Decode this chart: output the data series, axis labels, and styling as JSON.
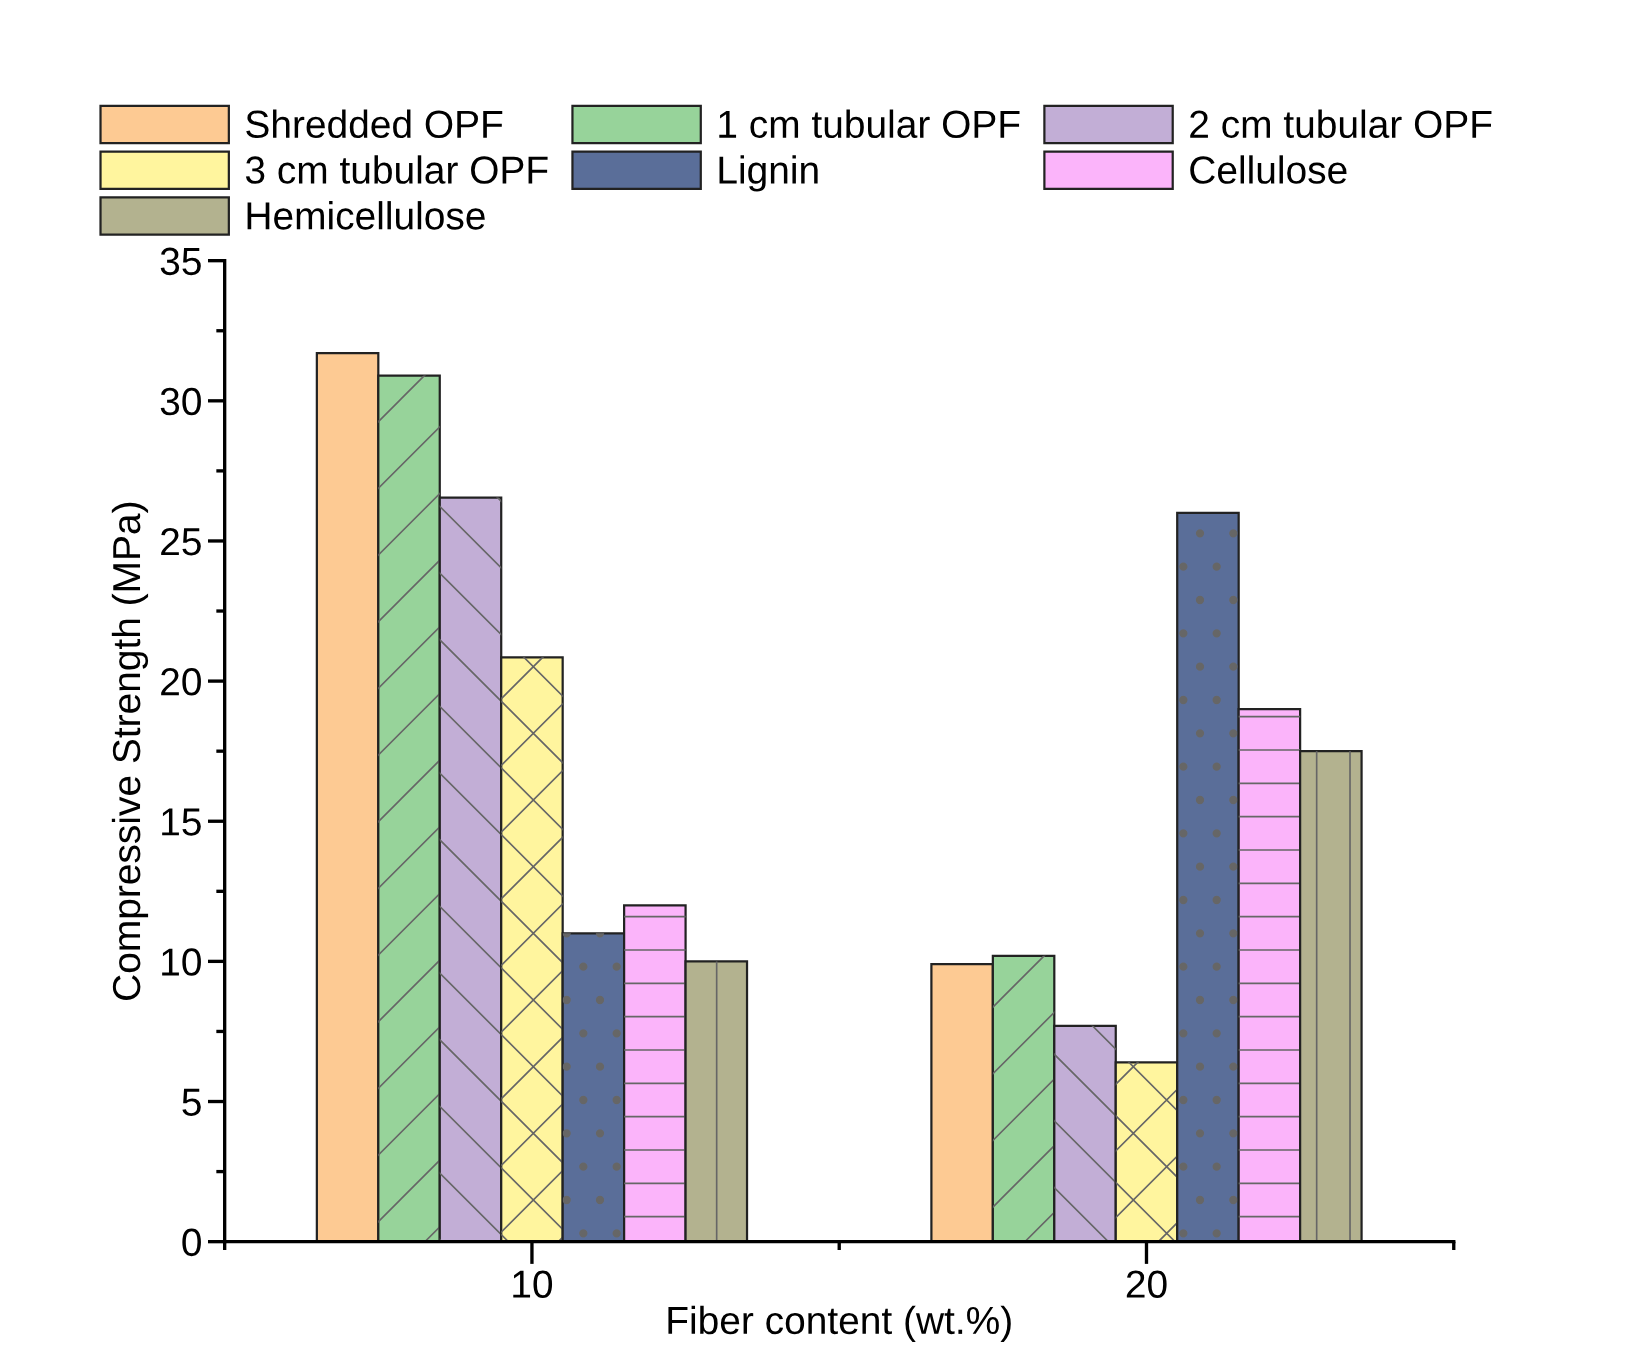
{
  "chart_data": {
    "type": "bar",
    "xlabel": "Fiber content (wt.%)",
    "ylabel": "Compressive Strength (MPa)",
    "categories": [
      "10",
      "20"
    ],
    "series": [
      {
        "name": "Shredded OPF",
        "color": "#fdca93",
        "values": [
          31.7,
          9.9
        ]
      },
      {
        "name": "1 cm tubular OPF",
        "color": "#97d39a",
        "values": [
          30.9,
          10.2
        ]
      },
      {
        "name": "2 cm tubular OPF",
        "color": "#c2aed6",
        "values": [
          26.55,
          7.7
        ]
      },
      {
        "name": "3 cm tubular OPF",
        "color": "#fff59e",
        "values": [
          20.85,
          6.4
        ]
      },
      {
        "name": "Lignin",
        "color": "#5a6e99",
        "values": [
          11,
          26
        ]
      },
      {
        "name": "Cellulose",
        "color": "#fbb4fa",
        "values": [
          12,
          19
        ]
      },
      {
        "name": "Hemicellulose",
        "color": "#b3b28f",
        "values": [
          10,
          17.5
        ]
      }
    ],
    "ylim": [
      0,
      35
    ],
    "yticks": [
      0,
      5,
      10,
      15,
      20,
      25,
      30,
      35
    ],
    "grid": false,
    "legend": "top"
  }
}
